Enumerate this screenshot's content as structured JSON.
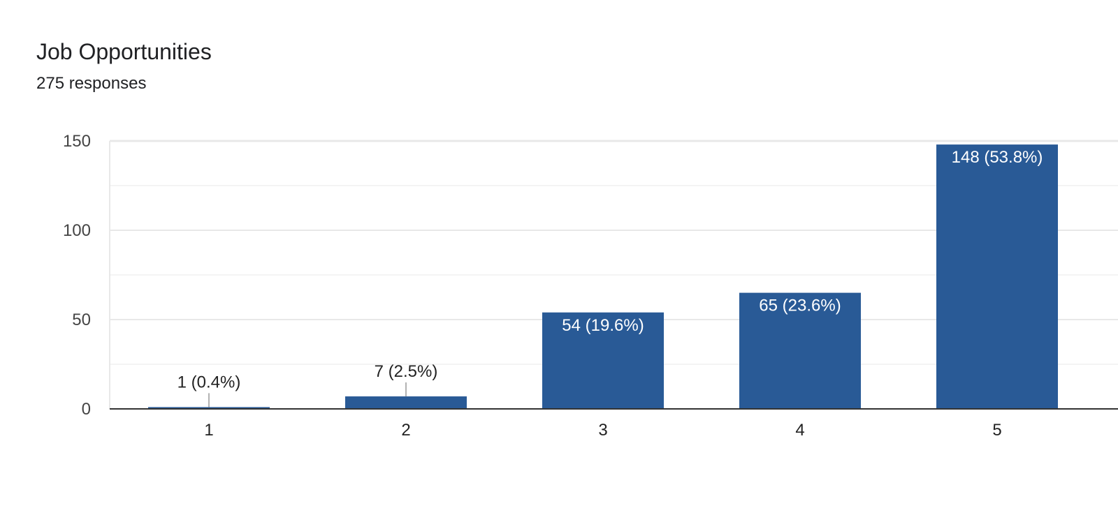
{
  "header": {
    "title": "Job Opportunities",
    "responses": "275 responses"
  },
  "colors": {
    "bar": "#295a96",
    "grid": "#e8e8e8",
    "axis": "#333333",
    "inside_label": "#ffffff",
    "outside_label": "#222222",
    "leader": "#999999"
  },
  "chart_data": {
    "type": "bar",
    "title": "Job Opportunities",
    "subtitle": "275 responses",
    "categories": [
      "1",
      "2",
      "3",
      "4",
      "5"
    ],
    "values": [
      1,
      7,
      54,
      65,
      148
    ],
    "data_labels": [
      "1 (0.4%)",
      "7 (2.5%)",
      "54 (19.6%)",
      "65 (23.6%)",
      "148 (53.8%)"
    ],
    "ylim": [
      0,
      150
    ],
    "yticks": [
      0,
      50,
      100,
      150
    ],
    "minor_gridlines": [
      25,
      75,
      125
    ],
    "grid": true,
    "legend": "none"
  }
}
